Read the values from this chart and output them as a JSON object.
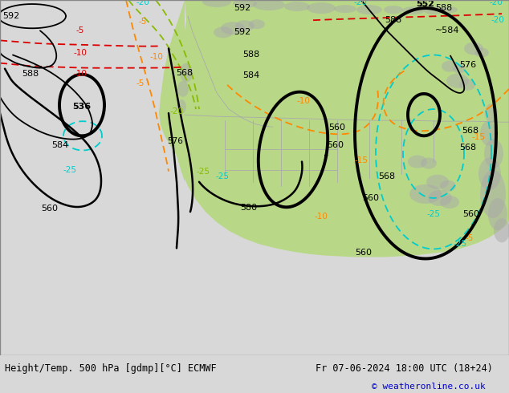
{
  "title_left": "Height/Temp. 500 hPa [gdmp][°C] ECMWF",
  "title_right": "Fr 07-06-2024 18:00 UTC (18+24)",
  "copyright": "© weatheronline.co.uk",
  "bg_color": "#d8d8d8",
  "land_color": "#b8d888",
  "gray_land_color": "#aaaaaa",
  "geo_color": "#000000",
  "temp_cyan_color": "#00cccc",
  "temp_green_color": "#88bb00",
  "temp_orange_color": "#ff8800",
  "temp_red_color": "#dd0000",
  "bottom_bar_color": "#cccccc",
  "title_fontsize": 8.5,
  "label_fontsize": 8,
  "temp_label_fontsize": 7.5
}
